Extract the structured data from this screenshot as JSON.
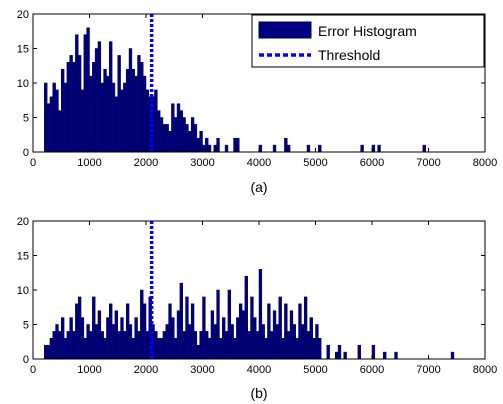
{
  "colors": {
    "bar_fill": "#000080",
    "bar_edge": "#000040",
    "threshold": "#0000ff",
    "axes": "#000000"
  },
  "chart_data": [
    {
      "type": "bar",
      "subplot_label": "(a)",
      "xlim": [
        0,
        8000
      ],
      "ylim": [
        0,
        20
      ],
      "xticks": [
        0,
        1000,
        2000,
        3000,
        4000,
        5000,
        6000,
        7000,
        8000
      ],
      "yticks": [
        0,
        5,
        10,
        15,
        20
      ],
      "bin_width": 50,
      "threshold": 2100,
      "legend": {
        "placement": "top-right",
        "entries": [
          "Error Histogram",
          "Threshold"
        ]
      },
      "x": [
        200,
        250,
        300,
        350,
        400,
        450,
        500,
        550,
        600,
        650,
        700,
        750,
        800,
        850,
        900,
        950,
        1000,
        1050,
        1100,
        1150,
        1200,
        1250,
        1300,
        1350,
        1400,
        1450,
        1500,
        1550,
        1600,
        1650,
        1700,
        1750,
        1800,
        1850,
        1900,
        1950,
        2000,
        2050,
        2100,
        2150,
        2200,
        2250,
        2300,
        2350,
        2400,
        2450,
        2500,
        2550,
        2600,
        2650,
        2700,
        2750,
        2800,
        2850,
        2900,
        2950,
        3000,
        3050,
        3100,
        3200,
        3250,
        3400,
        3550,
        3600,
        4000,
        4250,
        4450,
        4500,
        4850,
        5050,
        5800,
        6000,
        6100,
        6900
      ],
      "values": [
        10,
        7,
        8,
        10,
        9,
        6,
        12,
        10,
        13,
        14,
        13,
        17,
        14,
        9,
        17,
        18,
        11,
        13,
        15,
        16,
        10,
        12,
        11,
        16,
        10,
        8,
        14,
        9,
        10,
        12,
        15,
        12,
        11,
        14,
        13,
        11,
        9,
        8,
        8,
        9,
        6,
        5,
        4,
        4,
        3,
        7,
        5,
        7,
        6,
        5,
        4,
        3,
        5,
        4,
        2,
        3,
        1,
        2,
        1,
        1,
        2,
        1,
        2,
        2,
        1,
        1,
        2,
        1,
        1,
        1,
        1,
        1,
        1,
        1
      ]
    },
    {
      "type": "bar",
      "subplot_label": "(b)",
      "xlim": [
        0,
        8000
      ],
      "ylim": [
        0,
        20
      ],
      "xticks": [
        0,
        1000,
        2000,
        3000,
        4000,
        5000,
        6000,
        7000,
        8000
      ],
      "yticks": [
        0,
        5,
        10,
        15,
        20
      ],
      "bin_width": 50,
      "threshold": 2100,
      "x": [
        200,
        250,
        300,
        350,
        400,
        450,
        500,
        550,
        600,
        650,
        700,
        750,
        800,
        850,
        900,
        950,
        1000,
        1050,
        1100,
        1150,
        1200,
        1250,
        1300,
        1350,
        1400,
        1450,
        1500,
        1550,
        1600,
        1650,
        1700,
        1750,
        1800,
        1850,
        1900,
        1950,
        2000,
        2050,
        2100,
        2150,
        2200,
        2250,
        2300,
        2350,
        2400,
        2450,
        2500,
        2550,
        2600,
        2650,
        2700,
        2750,
        2800,
        2850,
        2900,
        2950,
        3000,
        3050,
        3100,
        3150,
        3200,
        3250,
        3300,
        3350,
        3400,
        3450,
        3500,
        3550,
        3600,
        3650,
        3700,
        3750,
        3800,
        3850,
        3900,
        3950,
        4000,
        4050,
        4100,
        4150,
        4200,
        4250,
        4300,
        4350,
        4400,
        4450,
        4500,
        4550,
        4600,
        4650,
        4700,
        4750,
        4800,
        4850,
        4900,
        4950,
        5000,
        5050,
        5200,
        5350,
        5400,
        5500,
        5750,
        6000,
        6200,
        6400,
        7400
      ],
      "values": [
        2,
        2,
        3,
        4,
        5,
        4,
        6,
        3,
        4,
        6,
        4,
        8,
        9,
        6,
        3,
        5,
        4,
        9,
        5,
        7,
        4,
        3,
        6,
        8,
        5,
        7,
        4,
        6,
        4,
        8,
        5,
        3,
        6,
        4,
        10,
        8,
        4,
        9,
        5,
        4,
        3,
        3,
        4,
        5,
        8,
        6,
        3,
        7,
        11,
        4,
        9,
        5,
        8,
        4,
        2,
        4,
        9,
        4,
        3,
        7,
        5,
        10,
        3,
        6,
        4,
        10,
        5,
        3,
        6,
        8,
        7,
        12,
        4,
        9,
        6,
        4,
        13,
        5,
        3,
        8,
        4,
        7,
        5,
        9,
        3,
        8,
        4,
        7,
        5,
        3,
        8,
        5,
        9,
        4,
        6,
        3,
        5,
        3,
        2,
        1,
        2,
        1,
        2,
        2,
        1,
        1,
        1
      ]
    }
  ]
}
